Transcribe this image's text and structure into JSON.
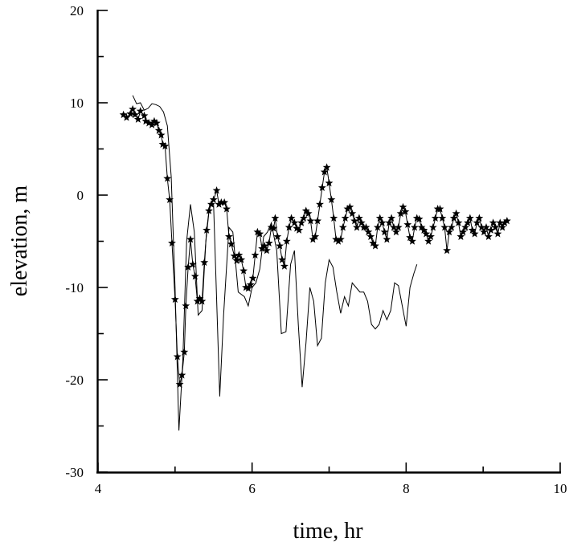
{
  "chart_data": {
    "type": "line",
    "title": "",
    "xlabel": "time, hr",
    "ylabel": "elevation, m",
    "xlim": [
      4,
      10
    ],
    "ylim": [
      -30,
      20
    ],
    "x_ticks": [
      "4",
      "6",
      "8",
      "10"
    ],
    "y_ticks": [
      "20",
      "10",
      "0",
      "-10",
      "-20",
      "-30"
    ],
    "grid": false,
    "legend": "none",
    "colors": {
      "line": "#000000",
      "marker": "#000000",
      "axis": "#000000"
    },
    "series": [
      {
        "style": "line",
        "points": [
          [
            4.45,
            10.8
          ],
          [
            4.5,
            9.9
          ],
          [
            4.55,
            10.0
          ],
          [
            4.6,
            9.2
          ],
          [
            4.65,
            9.4
          ],
          [
            4.7,
            9.9
          ],
          [
            4.75,
            9.8
          ],
          [
            4.8,
            9.6
          ],
          [
            4.85,
            9.0
          ],
          [
            4.9,
            7.5
          ],
          [
            4.95,
            2.0
          ],
          [
            5.0,
            -10.0
          ],
          [
            5.05,
            -25.5
          ],
          [
            5.1,
            -18.0
          ],
          [
            5.15,
            -5.0
          ],
          [
            5.2,
            -1.0
          ],
          [
            5.25,
            -4.0
          ],
          [
            5.3,
            -13.0
          ],
          [
            5.35,
            -12.5
          ],
          [
            5.4,
            -5.0
          ],
          [
            5.45,
            -1.0
          ],
          [
            5.5,
            -1.0
          ],
          [
            5.58,
            -21.8
          ],
          [
            5.63,
            -13.0
          ],
          [
            5.7,
            -3.5
          ],
          [
            5.75,
            -4.0
          ],
          [
            5.82,
            -10.5
          ],
          [
            5.9,
            -11.0
          ],
          [
            5.95,
            -12.0
          ],
          [
            6.0,
            -10.0
          ],
          [
            6.05,
            -9.5
          ],
          [
            6.1,
            -8.0
          ],
          [
            6.15,
            -4.5
          ],
          [
            6.2,
            -4.0
          ],
          [
            6.25,
            -3.0
          ],
          [
            6.32,
            -6.0
          ],
          [
            6.38,
            -15.0
          ],
          [
            6.44,
            -14.8
          ],
          [
            6.5,
            -7.5
          ],
          [
            6.55,
            -6.0
          ],
          [
            6.6,
            -14.0
          ],
          [
            6.65,
            -20.8
          ],
          [
            6.7,
            -16.0
          ],
          [
            6.75,
            -10.0
          ],
          [
            6.8,
            -11.5
          ],
          [
            6.85,
            -16.3
          ],
          [
            6.9,
            -15.5
          ],
          [
            6.95,
            -9.5
          ],
          [
            7.0,
            -7.0
          ],
          [
            7.05,
            -7.8
          ],
          [
            7.1,
            -10.5
          ],
          [
            7.15,
            -12.8
          ],
          [
            7.2,
            -11.0
          ],
          [
            7.25,
            -12.0
          ],
          [
            7.3,
            -9.5
          ],
          [
            7.35,
            -10.0
          ],
          [
            7.4,
            -10.5
          ],
          [
            7.45,
            -10.5
          ],
          [
            7.5,
            -11.5
          ],
          [
            7.55,
            -14.0
          ],
          [
            7.6,
            -14.5
          ],
          [
            7.65,
            -14.0
          ],
          [
            7.7,
            -12.5
          ],
          [
            7.75,
            -13.5
          ],
          [
            7.8,
            -12.5
          ],
          [
            7.85,
            -9.5
          ],
          [
            7.9,
            -9.8
          ],
          [
            7.95,
            -12.0
          ],
          [
            8.0,
            -14.2
          ],
          [
            8.05,
            -10.0
          ],
          [
            8.1,
            -8.5
          ],
          [
            8.14,
            -7.5
          ]
        ]
      },
      {
        "style": "line+star",
        "points": [
          [
            4.33,
            8.7
          ],
          [
            4.37,
            8.4
          ],
          [
            4.42,
            8.8
          ],
          [
            4.45,
            9.3
          ],
          [
            4.48,
            8.7
          ],
          [
            4.52,
            8.2
          ],
          [
            4.55,
            9.1
          ],
          [
            4.6,
            8.6
          ],
          [
            4.62,
            8.0
          ],
          [
            4.66,
            7.8
          ],
          [
            4.7,
            7.6
          ],
          [
            4.73,
            8.0
          ],
          [
            4.76,
            7.8
          ],
          [
            4.79,
            7.0
          ],
          [
            4.82,
            6.5
          ],
          [
            4.84,
            5.5
          ],
          [
            4.87,
            5.3
          ],
          [
            4.9,
            1.8
          ],
          [
            4.93,
            -0.5
          ],
          [
            4.96,
            -5.2
          ],
          [
            5.0,
            -11.3
          ],
          [
            5.03,
            -17.5
          ],
          [
            5.06,
            -20.5
          ],
          [
            5.09,
            -19.5
          ],
          [
            5.12,
            -17.0
          ],
          [
            5.14,
            -12.0
          ],
          [
            5.17,
            -7.8
          ],
          [
            5.2,
            -4.8
          ],
          [
            5.23,
            -7.5
          ],
          [
            5.26,
            -8.8
          ],
          [
            5.29,
            -11.5
          ],
          [
            5.32,
            -11.2
          ],
          [
            5.35,
            -11.5
          ],
          [
            5.38,
            -7.3
          ],
          [
            5.41,
            -3.8
          ],
          [
            5.44,
            -1.7
          ],
          [
            5.47,
            -1.0
          ],
          [
            5.5,
            -0.5
          ],
          [
            5.54,
            0.5
          ],
          [
            5.57,
            -1.0
          ],
          [
            5.6,
            -0.8
          ],
          [
            5.64,
            -0.8
          ],
          [
            5.67,
            -1.5
          ],
          [
            5.7,
            -4.5
          ],
          [
            5.73,
            -5.3
          ],
          [
            5.77,
            -6.6
          ],
          [
            5.8,
            -7.1
          ],
          [
            5.83,
            -6.5
          ],
          [
            5.86,
            -7.0
          ],
          [
            5.89,
            -8.2
          ],
          [
            5.92,
            -10.0
          ],
          [
            5.95,
            -10.1
          ],
          [
            5.98,
            -9.7
          ],
          [
            6.01,
            -9.0
          ],
          [
            6.04,
            -6.5
          ],
          [
            6.07,
            -4.0
          ],
          [
            6.1,
            -4.2
          ],
          [
            6.13,
            -5.8
          ],
          [
            6.16,
            -5.5
          ],
          [
            6.19,
            -6.0
          ],
          [
            6.22,
            -5.2
          ],
          [
            6.25,
            -3.5
          ],
          [
            6.28,
            -3.6
          ],
          [
            6.3,
            -2.5
          ],
          [
            6.33,
            -4.5
          ],
          [
            6.36,
            -5.5
          ],
          [
            6.39,
            -7.0
          ],
          [
            6.42,
            -7.7
          ],
          [
            6.45,
            -5.0
          ],
          [
            6.48,
            -3.5
          ],
          [
            6.51,
            -2.5
          ],
          [
            6.55,
            -3.0
          ],
          [
            6.58,
            -3.6
          ],
          [
            6.61,
            -3.8
          ],
          [
            6.64,
            -3.0
          ],
          [
            6.67,
            -2.5
          ],
          [
            6.7,
            -1.7
          ],
          [
            6.73,
            -2.0
          ],
          [
            6.76,
            -2.8
          ],
          [
            6.79,
            -4.8
          ],
          [
            6.82,
            -4.5
          ],
          [
            6.85,
            -2.8
          ],
          [
            6.88,
            -1.0
          ],
          [
            6.91,
            0.8
          ],
          [
            6.94,
            2.5
          ],
          [
            6.97,
            3.0
          ],
          [
            7.0,
            1.3
          ],
          [
            7.03,
            -0.5
          ],
          [
            7.06,
            -2.5
          ],
          [
            7.09,
            -4.8
          ],
          [
            7.12,
            -5.0
          ],
          [
            7.15,
            -4.8
          ],
          [
            7.18,
            -3.5
          ],
          [
            7.21,
            -2.5
          ],
          [
            7.24,
            -1.5
          ],
          [
            7.27,
            -1.3
          ],
          [
            7.3,
            -2.0
          ],
          [
            7.33,
            -2.8
          ],
          [
            7.36,
            -3.5
          ],
          [
            7.39,
            -2.5
          ],
          [
            7.42,
            -3.0
          ],
          [
            7.45,
            -3.5
          ],
          [
            7.48,
            -3.5
          ],
          [
            7.51,
            -4.0
          ],
          [
            7.54,
            -4.5
          ],
          [
            7.57,
            -5.2
          ],
          [
            7.6,
            -5.5
          ],
          [
            7.63,
            -3.5
          ],
          [
            7.66,
            -2.5
          ],
          [
            7.69,
            -3.0
          ],
          [
            7.72,
            -4.0
          ],
          [
            7.75,
            -4.8
          ],
          [
            7.78,
            -3.0
          ],
          [
            7.81,
            -2.5
          ],
          [
            7.84,
            -3.5
          ],
          [
            7.87,
            -4.0
          ],
          [
            7.9,
            -3.5
          ],
          [
            7.93,
            -2.0
          ],
          [
            7.96,
            -1.3
          ],
          [
            7.99,
            -1.8
          ],
          [
            8.02,
            -3.2
          ],
          [
            8.05,
            -4.6
          ],
          [
            8.08,
            -5.0
          ],
          [
            8.11,
            -3.5
          ],
          [
            8.14,
            -2.5
          ],
          [
            8.17,
            -2.6
          ],
          [
            8.2,
            -3.5
          ],
          [
            8.23,
            -3.8
          ],
          [
            8.26,
            -4.2
          ],
          [
            8.29,
            -5.0
          ],
          [
            8.32,
            -4.5
          ],
          [
            8.35,
            -3.5
          ],
          [
            8.38,
            -2.5
          ],
          [
            8.41,
            -1.5
          ],
          [
            8.44,
            -1.5
          ],
          [
            8.47,
            -2.5
          ],
          [
            8.5,
            -3.5
          ],
          [
            8.53,
            -6.0
          ],
          [
            8.56,
            -4.0
          ],
          [
            8.59,
            -3.5
          ],
          [
            8.62,
            -2.5
          ],
          [
            8.65,
            -2.0
          ],
          [
            8.68,
            -3.0
          ],
          [
            8.71,
            -4.5
          ],
          [
            8.74,
            -4.0
          ],
          [
            8.77,
            -3.5
          ],
          [
            8.8,
            -3.0
          ],
          [
            8.83,
            -2.5
          ],
          [
            8.86,
            -3.8
          ],
          [
            8.89,
            -4.2
          ],
          [
            8.92,
            -3.0
          ],
          [
            8.95,
            -2.5
          ],
          [
            8.98,
            -3.5
          ],
          [
            9.01,
            -4.0
          ],
          [
            9.04,
            -3.5
          ],
          [
            9.07,
            -4.5
          ],
          [
            9.1,
            -3.8
          ],
          [
            9.13,
            -3.0
          ],
          [
            9.16,
            -3.5
          ],
          [
            9.19,
            -4.2
          ],
          [
            9.22,
            -3.0
          ],
          [
            9.25,
            -3.5
          ],
          [
            9.28,
            -3.0
          ],
          [
            9.31,
            -2.8
          ]
        ]
      }
    ]
  }
}
